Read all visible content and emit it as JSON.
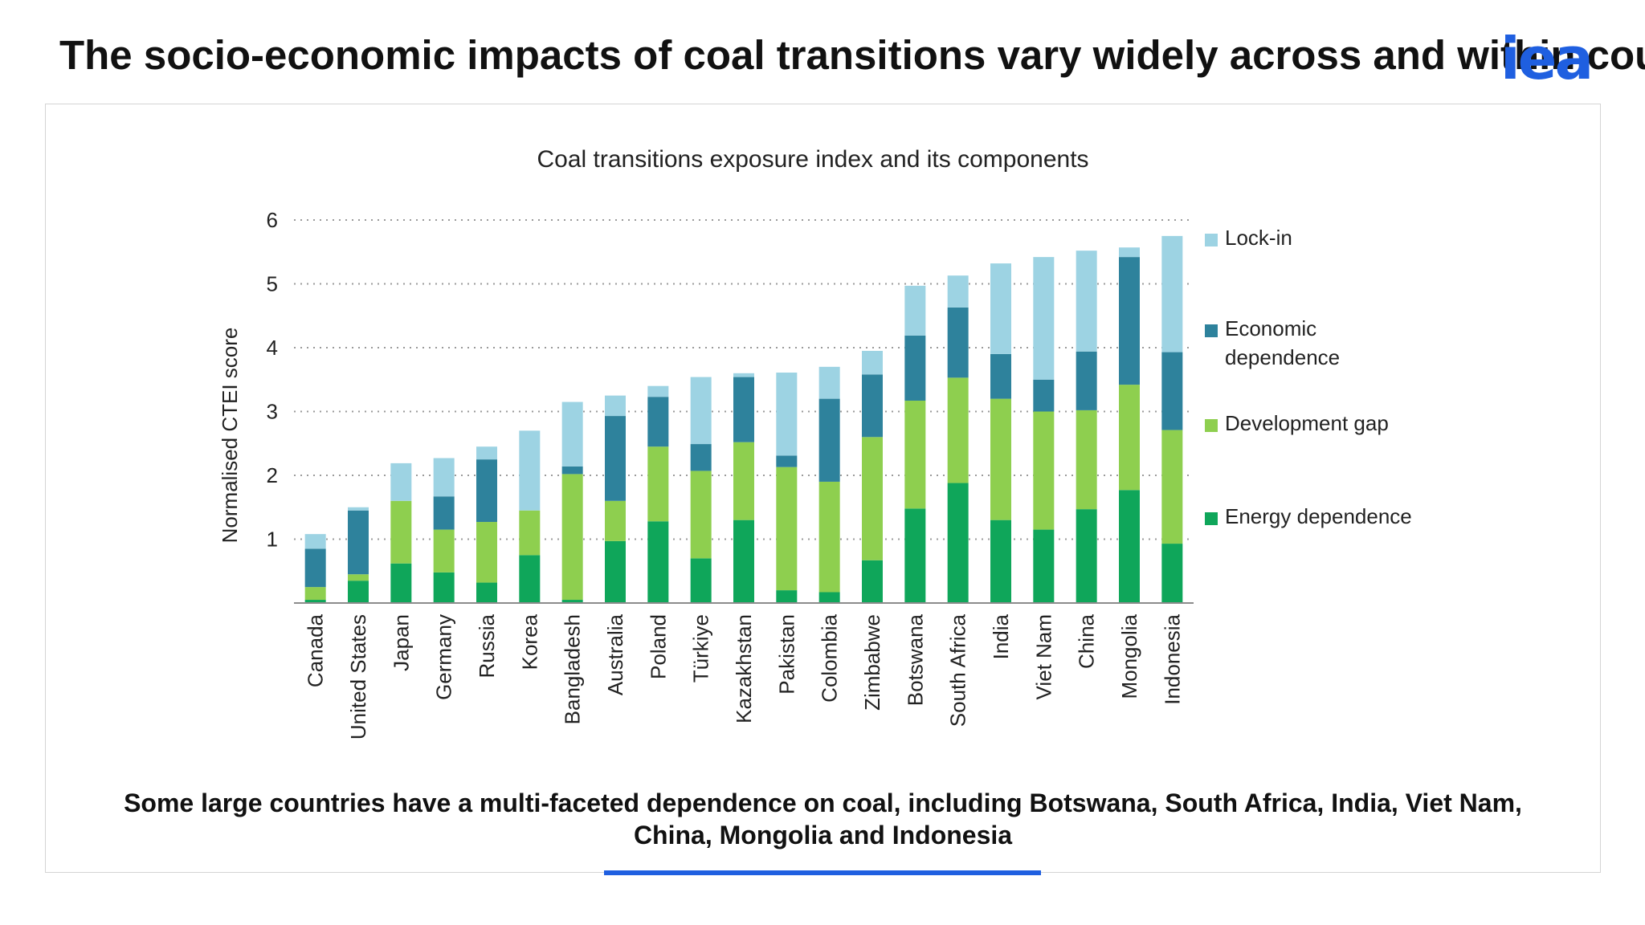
{
  "slide": {
    "title": "The socio-economic impacts of coal transitions vary widely across and within countries",
    "logo": "iea",
    "caption_line_1": "Some large countries have a multi-faceted dependence on coal, including Botswana, South Africa, India, Viet Nam,",
    "caption_line_2": "China, Mongolia and Indonesia"
  },
  "colors": {
    "energy_dependence": "#0fa65a",
    "development_gap": "#8ecf4f",
    "economic_dependence": "#2e829c",
    "lock_in": "#9dd3e3",
    "accent": "#1f5fe0"
  },
  "chart_data": {
    "type": "bar",
    "stacked": true,
    "title": "Coal transitions exposure index and its components",
    "xlabel": "",
    "ylabel": "Normalised CTEI score",
    "ylim": [
      0,
      6
    ],
    "yticks": [
      1,
      2,
      3,
      4,
      5,
      6
    ],
    "grid": true,
    "legend_position": "right",
    "categories": [
      "Canada",
      "United States",
      "Japan",
      "Germany",
      "Russia",
      "Korea",
      "Bangladesh",
      "Australia",
      "Poland",
      "Türkiye",
      "Kazakhstan",
      "Pakistan",
      "Colombia",
      "Zimbabwe",
      "Botswana",
      "South Africa",
      "India",
      "Viet Nam",
      "China",
      "Mongolia",
      "Indonesia"
    ],
    "series": [
      {
        "name": "Energy dependence",
        "values": [
          0.05,
          0.35,
          0.62,
          0.48,
          0.32,
          0.75,
          0.05,
          0.97,
          1.28,
          0.7,
          1.3,
          0.2,
          0.17,
          0.67,
          1.48,
          1.88,
          1.3,
          1.15,
          1.47,
          1.77,
          0.93
        ]
      },
      {
        "name": "Development gap",
        "values": [
          0.2,
          0.1,
          0.98,
          0.67,
          0.95,
          0.7,
          1.97,
          0.63,
          1.17,
          1.37,
          1.22,
          1.93,
          1.73,
          1.93,
          1.69,
          1.65,
          1.9,
          1.85,
          1.55,
          1.65,
          1.78
        ]
      },
      {
        "name": "Economic dependence",
        "values": [
          0.6,
          1.0,
          0.0,
          0.52,
          0.98,
          0.0,
          0.12,
          1.33,
          0.78,
          0.42,
          1.02,
          0.18,
          1.3,
          0.98,
          1.02,
          1.1,
          0.7,
          0.5,
          0.92,
          2.0,
          1.22
        ]
      },
      {
        "name": "Lock-in",
        "values": [
          0.23,
          0.05,
          0.59,
          0.6,
          0.2,
          1.25,
          1.01,
          0.32,
          0.17,
          1.05,
          0.06,
          1.3,
          0.5,
          0.37,
          0.78,
          0.5,
          1.42,
          1.92,
          1.58,
          0.15,
          1.82
        ]
      }
    ],
    "legend": [
      "Lock-in",
      "Economic dependence",
      "Development gap",
      "Energy dependence"
    ]
  }
}
